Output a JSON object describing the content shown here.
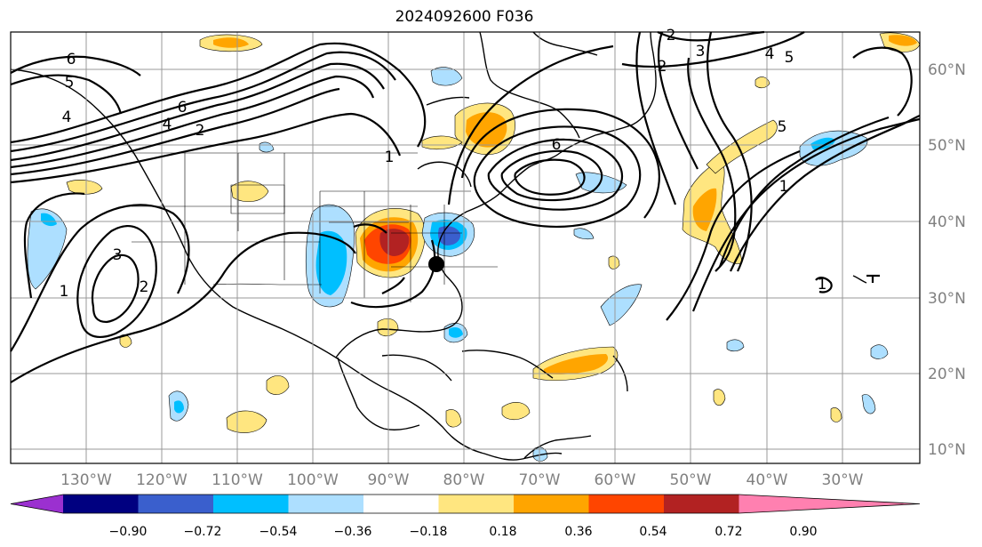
{
  "title": "2024092600 F036",
  "map": {
    "lat_labels": [
      "60°N",
      "50°N",
      "40°N",
      "30°N",
      "20°N",
      "10°N"
    ],
    "lon_labels": [
      "130°W",
      "120°W",
      "110°W",
      "100°W",
      "90°W",
      "80°W",
      "70°W",
      "60°W",
      "50°W",
      "40°W",
      "30°W"
    ],
    "contour_labels": [
      "6",
      "5",
      "4",
      "6",
      "4",
      "2",
      "3",
      "2",
      "1",
      "1",
      "6",
      "2",
      "3",
      "5",
      "4",
      "5",
      "1",
      "1",
      "2"
    ],
    "marker": "black-dot"
  },
  "colorbar": {
    "ticks": [
      "−0.90",
      "−0.72",
      "−0.54",
      "−0.36",
      "−0.18",
      "0.18",
      "0.36",
      "0.54",
      "0.72",
      "0.90"
    ],
    "colors": [
      "#9b30d0",
      "#000080",
      "#3a5fcd",
      "#00bfff",
      "#addfff",
      "#ffffff",
      "#ffe680",
      "#ffa500",
      "#ff4500",
      "#b22222",
      "#ff80b0"
    ]
  }
}
